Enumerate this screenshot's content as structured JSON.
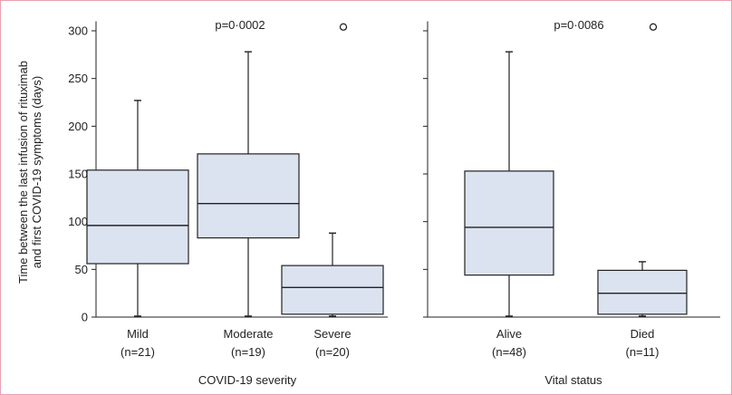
{
  "chart_data": [
    {
      "type": "box",
      "xlabel": "COVID-19 severity",
      "ylabel_lines": [
        "Time between the last infusion of rituximab",
        "and first COVID-19 symptoms (days)"
      ],
      "ylim": [
        0,
        310
      ],
      "yticks": [
        0,
        50,
        100,
        150,
        200,
        250,
        300
      ],
      "annotation": "p=0·0002",
      "categories": [
        {
          "label": "Mild",
          "n": "(n=21)",
          "min": 1,
          "q1": 56,
          "median": 96,
          "q3": 154,
          "max": 227,
          "outliers": []
        },
        {
          "label": "Moderate",
          "n": "(n=19)",
          "min": 1,
          "q1": 83,
          "median": 119,
          "q3": 171,
          "max": 278,
          "outliers": []
        },
        {
          "label": "Severe",
          "n": "(n=20)",
          "min": 1,
          "q1": 3,
          "median": 31,
          "q3": 54,
          "max": 88,
          "outliers": [
            304
          ]
        }
      ]
    },
    {
      "type": "box",
      "xlabel": "Vital status",
      "ylim": [
        0,
        310
      ],
      "yticks": [
        0,
        50,
        100,
        150,
        200,
        250,
        300
      ],
      "annotation": "p=0·0086",
      "categories": [
        {
          "label": "Alive",
          "n": "(n=48)",
          "min": 1,
          "q1": 44,
          "median": 94,
          "q3": 153,
          "max": 278,
          "outliers": []
        },
        {
          "label": "Died",
          "n": "(n=11)",
          "min": 1,
          "q1": 3,
          "median": 25,
          "q3": 49,
          "max": 58,
          "outliers": [
            304
          ]
        }
      ]
    }
  ],
  "colors": {
    "box_fill": "#dce3f0",
    "stroke": "#222222",
    "frame": "#e8a0b0"
  }
}
